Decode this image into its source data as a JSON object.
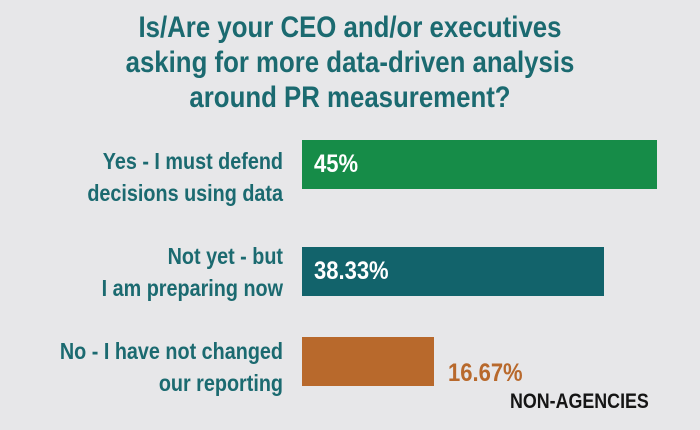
{
  "chart_data": {
    "type": "bar",
    "orientation": "horizontal",
    "title_lines": [
      "Is/Are your CEO and/or executives",
      "asking for more data-driven analysis",
      "around PR measurement?"
    ],
    "categories": [
      [
        "Yes - I must defend",
        "decisions using data"
      ],
      [
        "Not yet - but",
        "I am preparing now"
      ],
      [
        "No - I have not changed",
        "our reporting"
      ]
    ],
    "values": [
      45,
      38.33,
      16.67
    ],
    "value_labels": [
      "45%",
      "38.33%",
      "16.67%"
    ],
    "colors": [
      "#168c48",
      "#12636b",
      "#b8692c"
    ],
    "footnote": "NON-AGENCIES",
    "xlim": [
      0,
      50
    ]
  }
}
